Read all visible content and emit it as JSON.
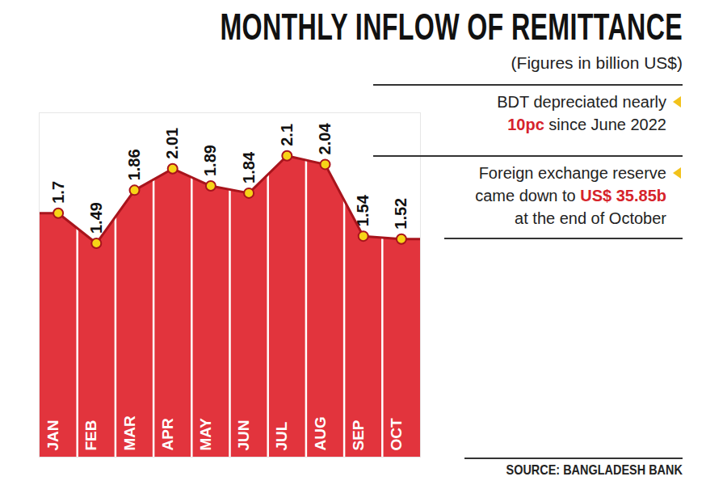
{
  "chart_data": {
    "type": "area",
    "title": "MONTHLY INFLOW OF REMITTANCE",
    "subtitle": "(Figures in billion US$)",
    "categories": [
      "JAN",
      "FEB",
      "MAR",
      "APR",
      "MAY",
      "JUN",
      "JUL",
      "AUG",
      "SEP",
      "OCT"
    ],
    "values": [
      1.7,
      1.49,
      1.86,
      2.01,
      1.89,
      1.84,
      2.1,
      2.04,
      1.54,
      1.52
    ],
    "color": "#e2343d",
    "ylim": [
      0,
      2.4
    ],
    "marker": "circle",
    "data_labels": true,
    "tick_labels": "x",
    "annotations": [
      {
        "lines": [
          "BDT depreciated nearly",
          "10pc since June 2022"
        ],
        "highlight": "10pc"
      },
      {
        "lines": [
          "Foreign exchange reserve",
          "came down to US$ 35.85b",
          "at the end of October"
        ],
        "highlight": "US$ 35.85b"
      }
    ],
    "source": "SOURCE: BANGLADESH BANK"
  }
}
